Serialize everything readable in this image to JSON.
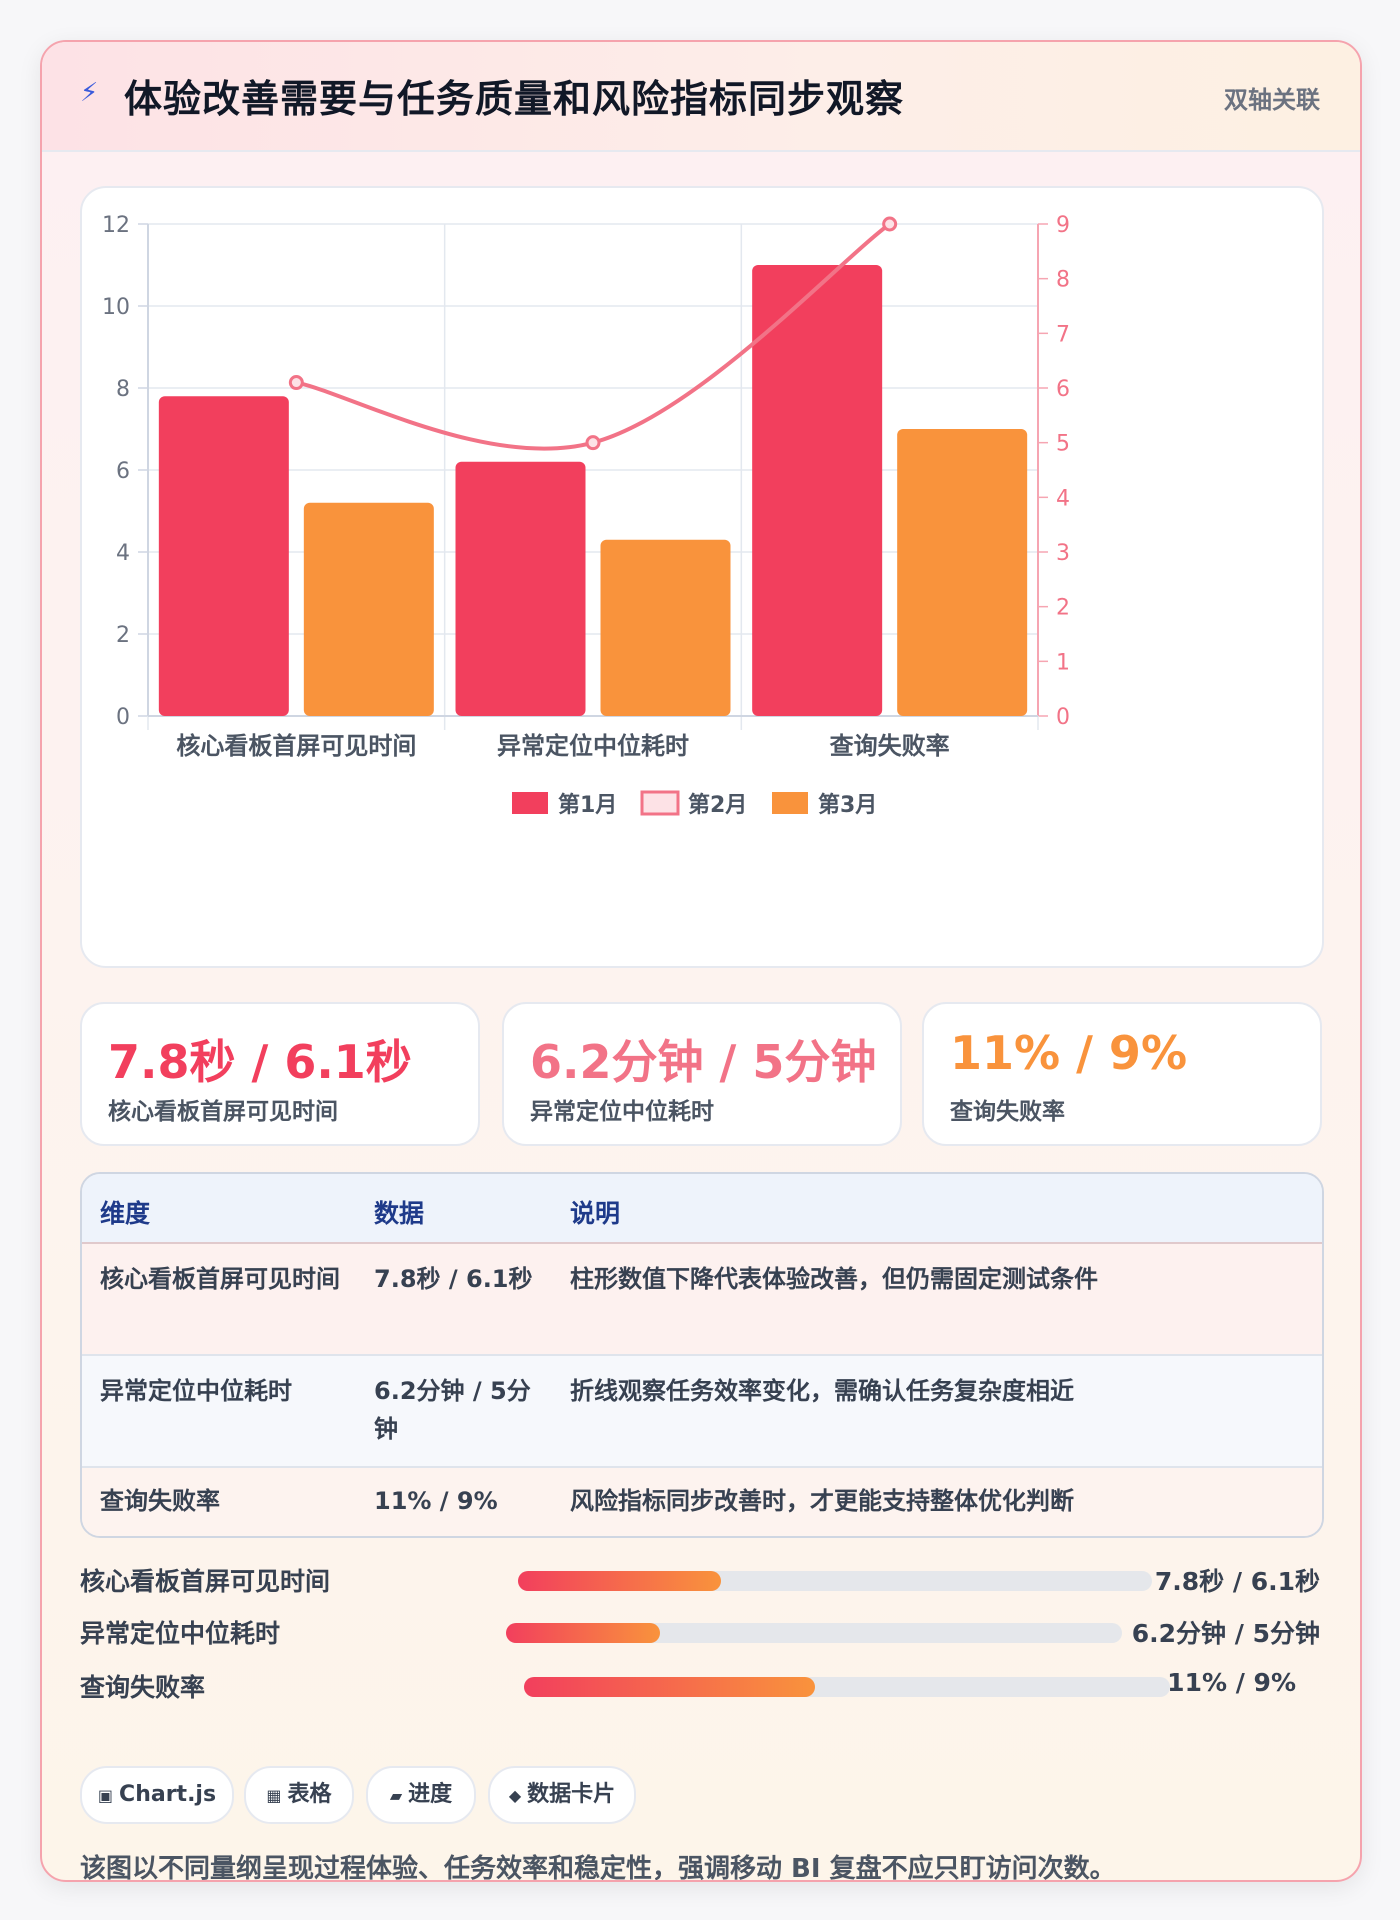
{
  "header": {
    "title": "体验改善需要与任务质量和风险指标同步观察",
    "tag": "双轴关联"
  },
  "chart_data": {
    "type": "bar",
    "categories": [
      "核心看板首屏可见时间",
      "异常定位中位耗时",
      "查询失败率"
    ],
    "series": [
      {
        "name": "第1月",
        "type": "bar",
        "axis": "left",
        "values": [
          7.8,
          6.2,
          11
        ],
        "color": "#f23f5d"
      },
      {
        "name": "第2月",
        "type": "line",
        "axis": "right",
        "values": [
          6.1,
          5,
          9
        ],
        "color": "#f27387"
      },
      {
        "name": "第3月",
        "type": "bar",
        "axis": "left",
        "values": [
          5.2,
          4.3,
          7
        ],
        "color": "#f9933c"
      }
    ],
    "y_left": {
      "min": 0,
      "max": 12,
      "ticks": [
        "0",
        "2",
        "4",
        "6",
        "8",
        "10",
        "12"
      ]
    },
    "y_right": {
      "min": 0,
      "max": 9,
      "ticks": [
        "0",
        "1",
        "2",
        "3",
        "4",
        "5",
        "6",
        "7",
        "8",
        "9"
      ]
    },
    "grid": true,
    "legend_position": "bottom"
  },
  "kpis": [
    {
      "value": "7.8秒 / 6.1秒",
      "label": "核心看板首屏可见时间",
      "color": "#f23f5d"
    },
    {
      "value": "6.2分钟 / 5分钟",
      "label": "异常定位中位耗时",
      "color": "#f27387"
    },
    {
      "value": "11% / 9%",
      "label": "查询失败率",
      "color": "#f9933c"
    }
  ],
  "table": {
    "headers": [
      "维度",
      "数据",
      "说明"
    ],
    "rows": [
      {
        "dim": "核心看板首屏可见时间",
        "data": "7.8秒 / 6.1秒",
        "note": "柱形数值下降代表体验改善，但仍需固定测试条件"
      },
      {
        "dim": "异常定位中位耗时",
        "data": "6.2分钟 / 5分钟",
        "note": "折线观察任务效率变化，需确认任务复杂度相近"
      },
      {
        "dim": "查询失败率",
        "data": "11% / 9%",
        "note": "风险指标同步改善时，才更能支持整体优化判断"
      }
    ]
  },
  "progress": [
    {
      "label": "核心看板首屏可见时间",
      "value": "7.8秒 / 6.1秒",
      "fill_percent": 32
    },
    {
      "label": "异常定位中位耗时",
      "value": "6.2分钟 / 5分钟",
      "fill_percent": 25
    },
    {
      "label": "查询失败率",
      "value": "11% / 9%",
      "fill_percent": 45
    }
  ],
  "chips": [
    {
      "icon": "▣",
      "label": "Chart.js"
    },
    {
      "icon": "▦",
      "label": "表格"
    },
    {
      "icon": "▰",
      "label": "进度"
    },
    {
      "icon": "◆",
      "label": "数据卡片"
    }
  ],
  "footnote": "该图以不同量纲呈现过程体验、任务效率和稳定性，强调移动 BI 复盘不应只盯访问次数。"
}
